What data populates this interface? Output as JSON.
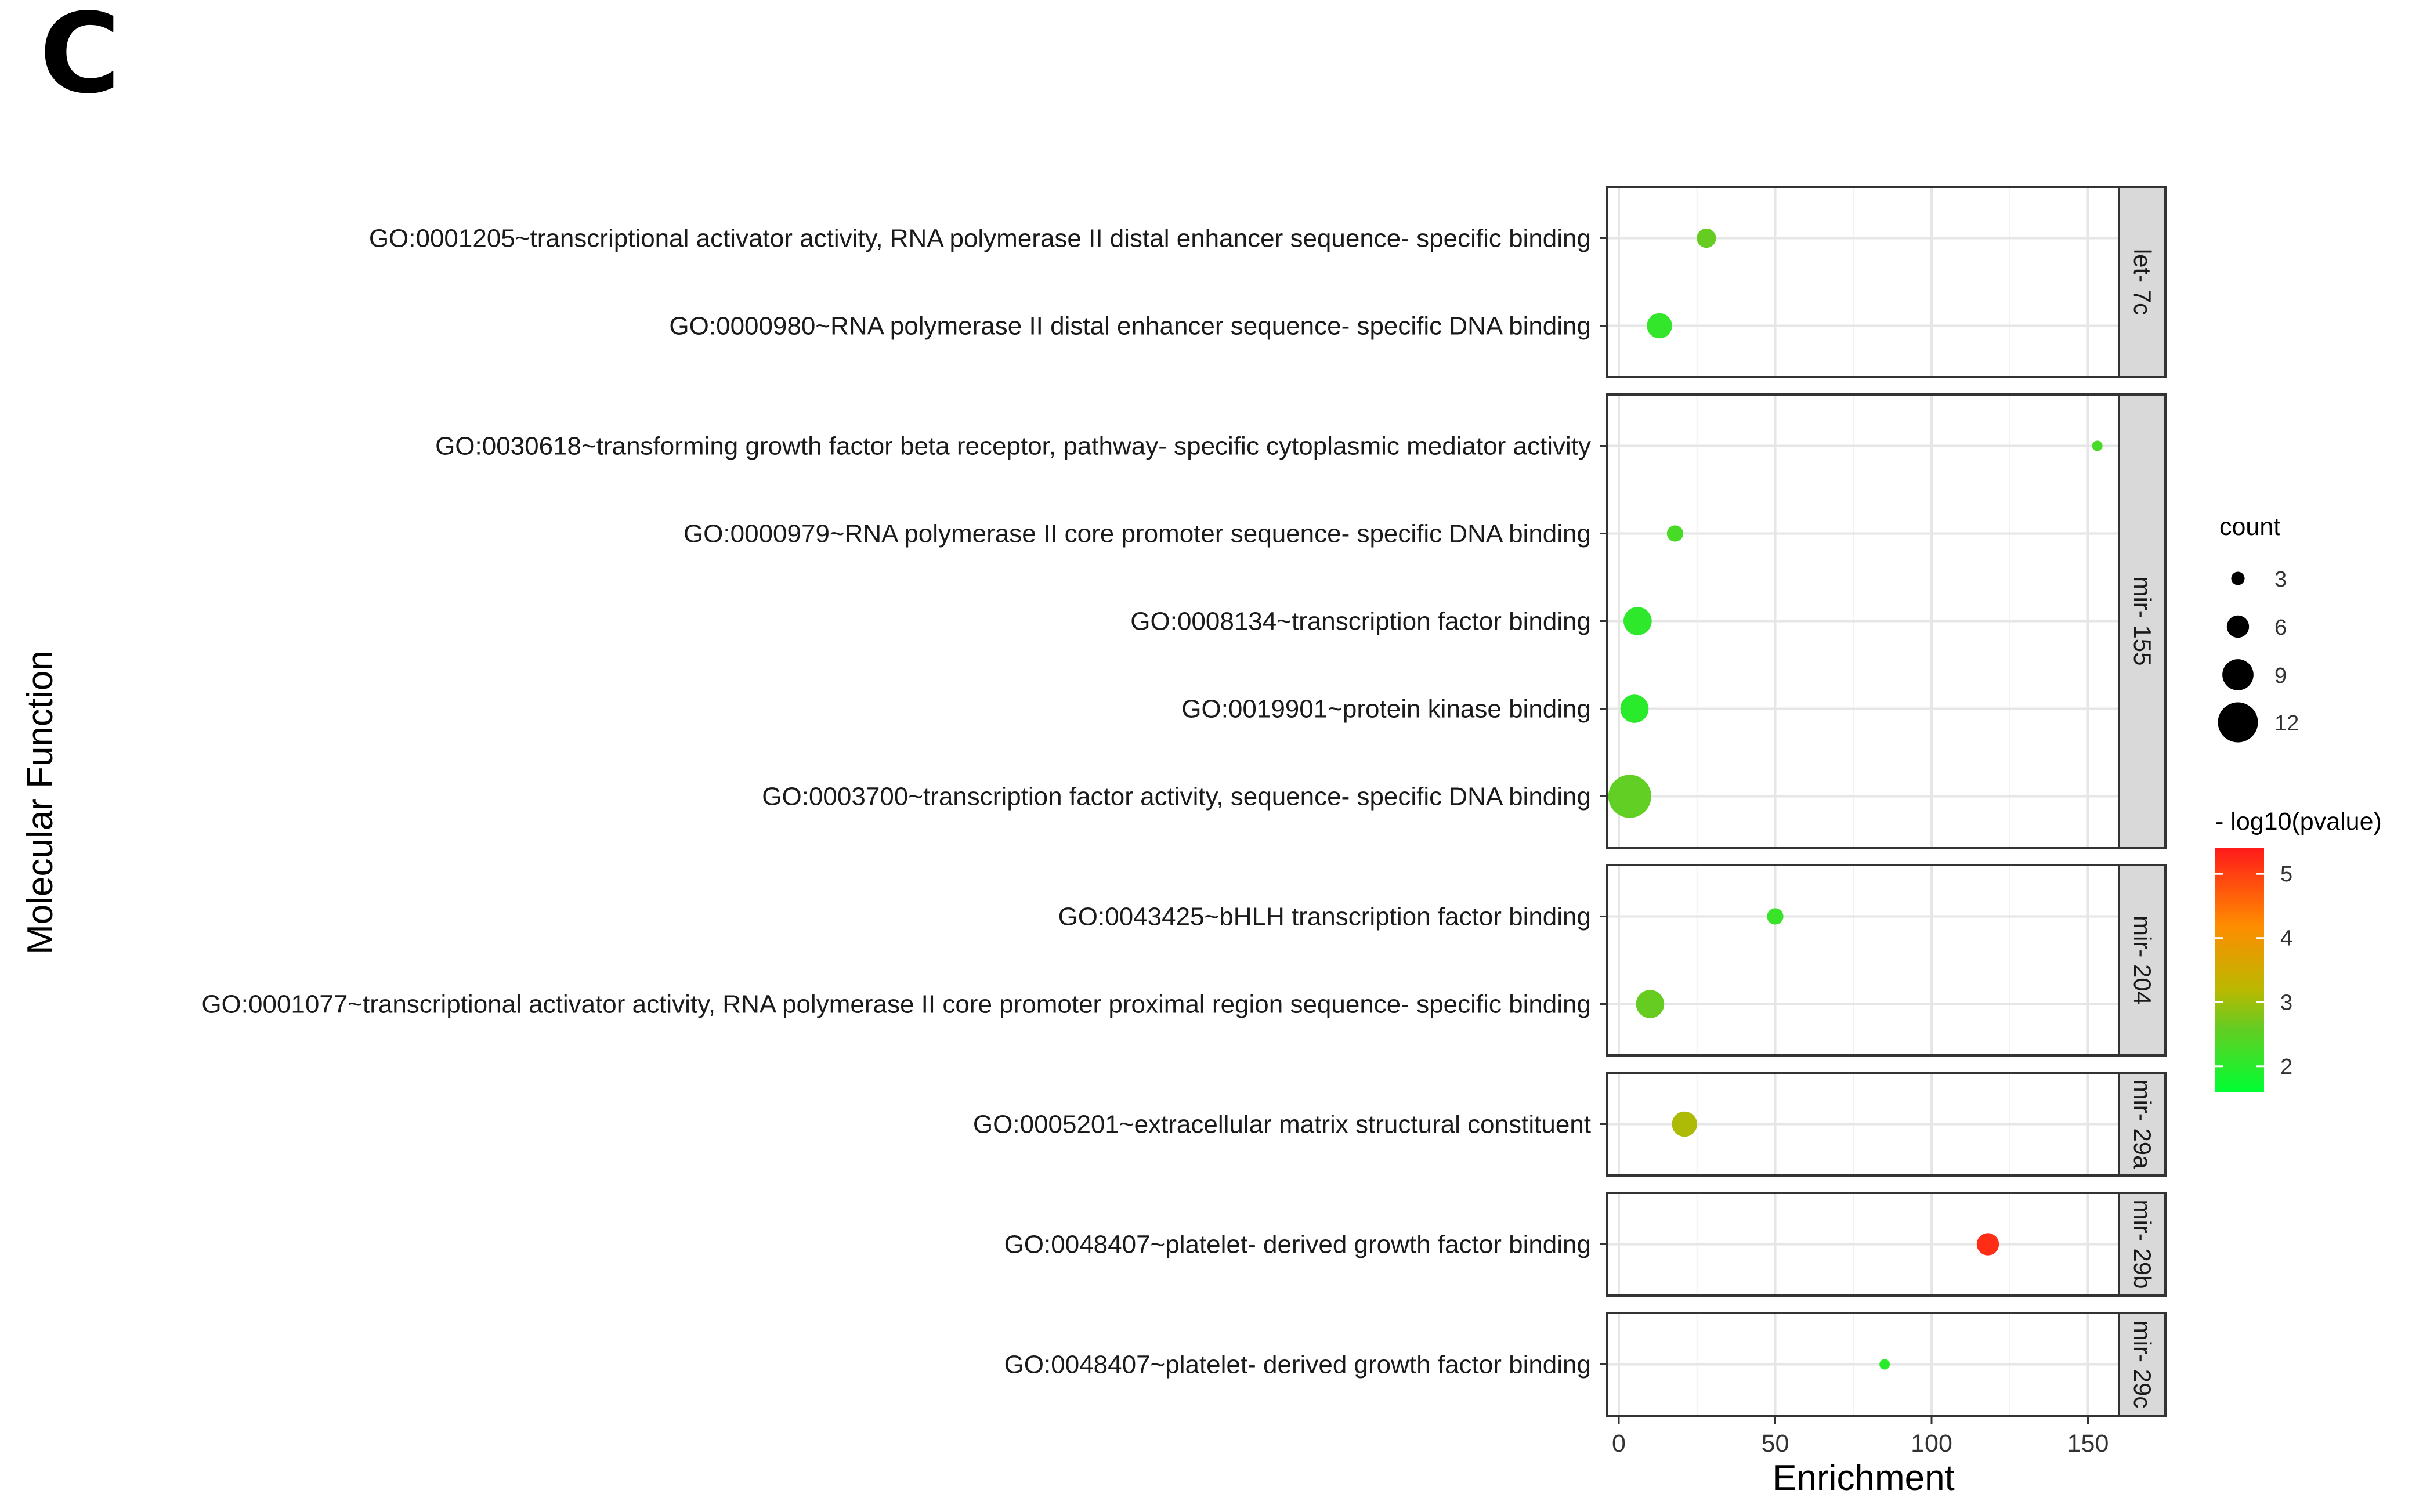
{
  "panel_label": "C",
  "chart_data": {
    "type": "scatter",
    "subtype": "dot-plot",
    "title": "",
    "xlabel": "Enrichment",
    "ylabel": "Molecular Function",
    "xlim": [
      -3,
      160
    ],
    "x_ticks": [
      0,
      50,
      100,
      150
    ],
    "x_tick_labels": [
      "0",
      "50",
      "100",
      "150"
    ],
    "grid": true,
    "facets": [
      {
        "label": "let- 7c",
        "terms": [
          {
            "term": "GO:0001205~transcriptional activator activity, RNA polymerase II distal enhancer sequence- specific binding",
            "enrichment": 28,
            "count": 5,
            "neglog10p": 2.6
          },
          {
            "term": "GO:0000980~RNA polymerase II distal enhancer sequence- specific DNA binding",
            "enrichment": 13,
            "count": 7,
            "neglog10p": 2.1
          }
        ]
      },
      {
        "label": "mir- 155",
        "terms": [
          {
            "term": "GO:0030618~transforming growth factor beta receptor, pathway- specific cytoplasmic mediator activity",
            "enrichment": 153,
            "count": 2,
            "neglog10p": 2.3
          },
          {
            "term": "GO:0000979~RNA polymerase II core promoter sequence- specific DNA binding",
            "enrichment": 18,
            "count": 4,
            "neglog10p": 2.3
          },
          {
            "term": "GO:0008134~transcription factor binding",
            "enrichment": 6,
            "count": 8,
            "neglog10p": 2.05
          },
          {
            "term": "GO:0019901~protein kinase binding",
            "enrichment": 5,
            "count": 8,
            "neglog10p": 2.0
          },
          {
            "term": "GO:0003700~transcription factor activity, sequence- specific DNA binding",
            "enrichment": 3.5,
            "count": 13,
            "neglog10p": 2.55
          }
        ]
      },
      {
        "label": "mir- 204",
        "terms": [
          {
            "term": "GO:0043425~bHLH transcription factor binding",
            "enrichment": 50,
            "count": 4,
            "neglog10p": 2.15
          },
          {
            "term": "GO:0001077~transcriptional activator activity, RNA polymerase II core promoter proximal region sequence- specific binding",
            "enrichment": 10,
            "count": 8,
            "neglog10p": 2.6
          }
        ]
      },
      {
        "label": "mir- 29a",
        "terms": [
          {
            "term": "GO:0005201~extracellular matrix structural constituent",
            "enrichment": 21,
            "count": 7,
            "neglog10p": 3.1
          }
        ]
      },
      {
        "label": "mir- 29b",
        "terms": [
          {
            "term": "GO:0048407~platelet- derived growth factor binding",
            "enrichment": 118,
            "count": 6,
            "neglog10p": 5.2
          }
        ]
      },
      {
        "label": "mir- 29c",
        "terms": [
          {
            "term": "GO:0048407~platelet- derived growth factor binding",
            "enrichment": 85,
            "count": 2,
            "neglog10p": 2.0
          }
        ]
      }
    ],
    "size_legend": {
      "title": "count",
      "values": [
        3,
        6,
        9,
        12
      ],
      "labels": [
        "3",
        "6",
        "9",
        "12"
      ]
    },
    "color_legend": {
      "title": "- log10(pvalue)",
      "range": [
        1.6,
        5.4
      ],
      "ticks": [
        2,
        3,
        4,
        5
      ],
      "tick_labels": [
        "2",
        "3",
        "4",
        "5"
      ],
      "colors": {
        "low": "#00ff33",
        "mid_low": "#66cc22",
        "mid": "#bbb800",
        "mid_high": "#ff8c00",
        "high": "#ff1a1a"
      }
    },
    "colors": {
      "panel_border": "#333333",
      "grid": "#e6e6e6",
      "strip_fill": "#d9d9d9"
    }
  }
}
